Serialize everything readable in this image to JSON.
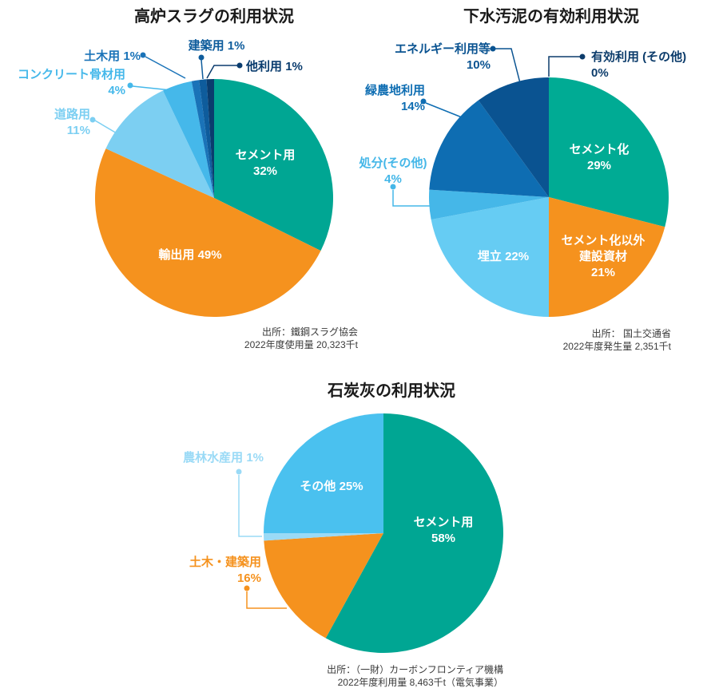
{
  "page": {
    "background": "#FFFFFF",
    "palette": {
      "title_text": "#1A1A1A",
      "source_text": "#3A3A3A",
      "inside_label_text": "#FFFFFF"
    }
  },
  "charts": [
    {
      "title": "高炉スラグの利用状況",
      "source": {
        "line1": "出所：鐵鋼スラグ協会",
        "line2": "2022年度使用量 20,323千t"
      },
      "chart_data": {
        "type": "pie",
        "unit": "%",
        "start_angle_deg": 0,
        "direction": "clockwise",
        "slices": [
          {
            "label": "セメント用",
            "value": 32,
            "pct_text": "32%",
            "color": "#00A693",
            "label_placement": "inside"
          },
          {
            "label": "輸出用",
            "value": 49,
            "pct_text": "49%",
            "color": "#F5921E",
            "label_placement": "inside"
          },
          {
            "label": "道路用",
            "value": 11,
            "pct_text": "11%",
            "color": "#7CCFF2",
            "label_placement": "outside"
          },
          {
            "label": "コンクリート骨材用",
            "value": 4,
            "pct_text": "4%",
            "color": "#45B8EA",
            "label_placement": "outside"
          },
          {
            "label": "土木用",
            "value": 1,
            "pct_text": "1%",
            "color": "#1A73B8",
            "label_placement": "outside"
          },
          {
            "label": "建築用",
            "value": 1,
            "pct_text": "1%",
            "color": "#0E5C9C",
            "label_placement": "outside"
          },
          {
            "label": "他利用",
            "value": 1,
            "pct_text": "1%",
            "color": "#0A3C6E",
            "label_placement": "outside"
          }
        ]
      }
    },
    {
      "title": "下水汚泥の有効利用状況",
      "source": {
        "line1": "出所： 国土交通省",
        "line2": "2022年度発生量 2,351千t"
      },
      "chart_data": {
        "type": "pie",
        "unit": "%",
        "start_angle_deg": 0,
        "direction": "clockwise",
        "slices": [
          {
            "label": "セメント化",
            "value": 29,
            "pct_text": "29%",
            "color": "#00AB94",
            "label_placement": "inside"
          },
          {
            "label": "セメント化以外建設資材",
            "label_lines": [
              "セメント化以外",
              "建設資材"
            ],
            "value": 21,
            "pct_text": "21%",
            "color": "#F5921E",
            "label_placement": "inside"
          },
          {
            "label": "埋立",
            "value": 22,
            "pct_text": "22%",
            "color": "#66CCF3",
            "label_placement": "inside"
          },
          {
            "label": "処分(その他)",
            "value": 4,
            "pct_text": "4%",
            "color": "#45B7E8",
            "label_placement": "outside"
          },
          {
            "label": "緑農地利用",
            "value": 14,
            "pct_text": "14%",
            "color": "#0E6DB2",
            "label_placement": "outside"
          },
          {
            "label": "エネルギー利用等",
            "value": 10,
            "pct_text": "10%",
            "color": "#0A5391",
            "label_placement": "outside"
          },
          {
            "label": "有効利用 (その他)",
            "value": 0,
            "pct_text": "0%",
            "color": "#0C3C6B",
            "label_placement": "outside"
          }
        ]
      }
    },
    {
      "title": "石炭灰の利用状況",
      "source": {
        "line1": "出所：（一財）カーボンフロンティア機構",
        "line2": "2022年度利用量 8,463千t（電気事業）"
      },
      "chart_data": {
        "type": "pie",
        "unit": "%",
        "start_angle_deg": 0,
        "direction": "clockwise",
        "slices": [
          {
            "label": "セメント用",
            "value": 58,
            "pct_text": "58%",
            "color": "#00A693",
            "label_placement": "inside"
          },
          {
            "label": "土木・建築用",
            "value": 16,
            "pct_text": "16%",
            "color": "#F5921E",
            "label_placement": "outside"
          },
          {
            "label": "農林水産用",
            "value": 1,
            "pct_text": "1%",
            "color": "#9ADAF6",
            "label_placement": "outside"
          },
          {
            "label": "その他",
            "value": 25,
            "pct_text": "25%",
            "color": "#4AC1EF",
            "label_placement": "inside"
          }
        ]
      }
    }
  ]
}
